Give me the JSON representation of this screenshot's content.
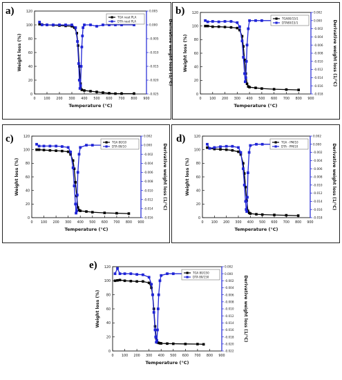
{
  "figure": {
    "palette": {
      "tga": "#000000",
      "dtg": "#1f24d6"
    }
  },
  "chart_data": [
    {
      "id": "a",
      "type": "line",
      "panel_label": "a)",
      "xlabel": "Temperature (°C)",
      "ylabel": "Weight loss (%)",
      "y2label": "Derivative weight loss (1/°C)",
      "xlim": [
        0,
        900
      ],
      "xticks": [
        0,
        100,
        200,
        300,
        400,
        500,
        600,
        700,
        800,
        900
      ],
      "ylim": [
        0,
        120
      ],
      "yticks": [
        0,
        20,
        40,
        60,
        80,
        100,
        120
      ],
      "y2lim": [
        -0.025,
        0.005
      ],
      "y2ticks": [
        0.005,
        0.0,
        -0.005,
        -0.01,
        -0.015,
        -0.02,
        -0.025
      ],
      "y2ticklabels": [
        "0.005",
        "0.000",
        "-0.005",
        "-0.010",
        "-0.015",
        "-0.020",
        "-0.025"
      ],
      "legend": {
        "position": "top-right",
        "entries": [
          "TGA neat PLA",
          "DTA neat PLA"
        ]
      },
      "series": [
        {
          "name": "TGA neat PLA",
          "axis": "left",
          "color": "#000000",
          "x": [
            40,
            60,
            100,
            150,
            200,
            250,
            300,
            320,
            340,
            350,
            360,
            370,
            380,
            400,
            450,
            500,
            550,
            600,
            650,
            700,
            800
          ],
          "y": [
            101,
            100.5,
            100,
            99.5,
            99,
            98.5,
            98,
            96,
            88,
            70,
            40,
            15,
            6,
            5,
            4,
            3,
            2,
            1,
            0.5,
            0.5,
            0.5
          ]
        },
        {
          "name": "DTA neat PLA",
          "axis": "right",
          "color": "#1f24d6",
          "x": [
            40,
            60,
            100,
            150,
            200,
            250,
            300,
            330,
            345,
            355,
            360,
            365,
            370,
            375,
            380,
            385,
            390,
            400,
            450,
            500,
            550,
            600,
            650,
            700,
            800
          ],
          "y": [
            0.001,
            0.0,
            0.0,
            0.0,
            0.0,
            0.0,
            0.0,
            -0.001,
            -0.006,
            -0.014,
            -0.02,
            -0.023,
            -0.022,
            -0.015,
            -0.008,
            -0.004,
            -0.001,
            0.0,
            0.0,
            -0.0005,
            0.0,
            0.0,
            0.0,
            0.0,
            0.0
          ]
        }
      ]
    },
    {
      "id": "b",
      "type": "line",
      "panel_label": "b)",
      "xlabel": "Temperature (°C)",
      "ylabel": "Weight loss (%)",
      "y2label": "Derivative weight loss (1/°C)",
      "xlim": [
        0,
        900
      ],
      "xticks": [
        0,
        100,
        200,
        300,
        400,
        500,
        600,
        700,
        800,
        900
      ],
      "ylim": [
        0,
        120
      ],
      "yticks": [
        0,
        20,
        40,
        60,
        80,
        100,
        120
      ],
      "y2lim": [
        -0.018,
        0.002
      ],
      "y2ticks": [
        0.002,
        0.0,
        -0.002,
        -0.004,
        -0.006,
        -0.008,
        -0.01,
        -0.012,
        -0.014,
        -0.016,
        -0.018
      ],
      "y2ticklabels": [
        "0.002",
        "0.000",
        "-0.002",
        "-0.004",
        "-0.006",
        "-0.008",
        "-0.010",
        "-0.012",
        "-0.014",
        "-0.016",
        "-0.018"
      ],
      "legend": {
        "position": "top-right",
        "entries": [
          "TGA80/15/1",
          "DTA80/15/1"
        ]
      },
      "series": [
        {
          "name": "TGA80/15/1",
          "axis": "left",
          "color": "#000000",
          "x": [
            40,
            60,
            100,
            150,
            200,
            250,
            300,
            320,
            340,
            350,
            360,
            370,
            380,
            390,
            400,
            450,
            500,
            600,
            700,
            800
          ],
          "y": [
            100,
            100,
            99,
            99,
            98.5,
            98,
            97,
            94,
            85,
            70,
            50,
            30,
            15,
            11,
            10,
            9,
            8,
            7,
            6.5,
            6
          ]
        },
        {
          "name": "DTA80/15/1",
          "axis": "right",
          "color": "#1f24d6",
          "x": [
            40,
            60,
            100,
            150,
            200,
            250,
            300,
            320,
            340,
            350,
            360,
            365,
            370,
            375,
            380,
            390,
            400,
            450,
            500,
            600,
            700,
            800
          ],
          "y": [
            0.0,
            -0.0003,
            -0.0002,
            -0.0003,
            -0.0002,
            -0.0002,
            -0.0005,
            -0.0015,
            -0.005,
            -0.009,
            -0.013,
            -0.015,
            -0.014,
            -0.01,
            -0.006,
            -0.002,
            0.0,
            0.0,
            0.0,
            0.0,
            0.0,
            0.0
          ]
        }
      ]
    },
    {
      "id": "c",
      "type": "line",
      "panel_label": "c)",
      "xlabel": "Temperature (°C)",
      "ylabel": "Weight loss (%)",
      "y2label": "Derivative weight loss (1/°C)",
      "xlim": [
        0,
        900
      ],
      "xticks": [
        0,
        100,
        200,
        300,
        400,
        500,
        600,
        700,
        800,
        900
      ],
      "ylim": [
        0,
        120
      ],
      "yticks": [
        0,
        20,
        40,
        60,
        80,
        100,
        120
      ],
      "y2lim": [
        -0.016,
        0.002
      ],
      "y2ticks": [
        0.002,
        0.0,
        -0.002,
        -0.004,
        -0.006,
        -0.008,
        -0.01,
        -0.012,
        -0.014,
        -0.016
      ],
      "y2ticklabels": [
        "0.002",
        "0.000",
        "-0.002",
        "-0.004",
        "-0.006",
        "-0.008",
        "-0.010",
        "-0.012",
        "-0.014",
        "-0.016"
      ],
      "legend": {
        "position": "top-right",
        "entries": [
          "TGA 80/10",
          "DTA 80/10"
        ]
      },
      "series": [
        {
          "name": "TGA 80/10",
          "axis": "left",
          "color": "#000000",
          "x": [
            40,
            60,
            100,
            150,
            200,
            250,
            300,
            320,
            340,
            350,
            360,
            370,
            380,
            390,
            400,
            450,
            500,
            600,
            700,
            800
          ],
          "y": [
            100,
            100,
            99.5,
            99,
            98.5,
            98,
            97,
            93,
            84,
            72,
            52,
            32,
            15,
            11,
            10,
            9,
            8,
            7,
            6.5,
            6
          ]
        },
        {
          "name": "DTA 80/10",
          "axis": "right",
          "color": "#1f24d6",
          "x": [
            40,
            60,
            100,
            150,
            200,
            250,
            300,
            320,
            340,
            350,
            360,
            365,
            370,
            375,
            380,
            390,
            400,
            450,
            500,
            600,
            700,
            800
          ],
          "y": [
            0.0002,
            -0.0002,
            -0.0002,
            -0.0002,
            -0.0002,
            -0.0003,
            -0.0005,
            -0.0015,
            -0.005,
            -0.009,
            -0.013,
            -0.015,
            -0.0145,
            -0.011,
            -0.006,
            -0.002,
            -0.0005,
            0.0,
            0.0,
            0.0,
            0.0,
            0.0
          ]
        }
      ]
    },
    {
      "id": "d",
      "type": "line",
      "panel_label": "d)",
      "xlabel": "Temperature (°C)",
      "ylabel": "Weight loss (%)",
      "y2label": "Derivative weight loss (1/°C)",
      "xlim": [
        0,
        900
      ],
      "xticks": [
        0,
        100,
        200,
        300,
        400,
        500,
        600,
        700,
        800,
        900
      ],
      "ylim": [
        0,
        120
      ],
      "yticks": [
        0,
        20,
        40,
        60,
        80,
        100,
        120
      ],
      "y2lim": [
        -0.018,
        0.002
      ],
      "y2ticks": [
        0.002,
        0.0,
        -0.002,
        -0.004,
        -0.006,
        -0.008,
        -0.01,
        -0.012,
        -0.014,
        -0.016,
        -0.018
      ],
      "y2ticklabels": [
        "0.002",
        "0.000",
        "-0.002",
        "-0.004",
        "-0.006",
        "-0.008",
        "-0.010",
        "-0.012",
        "-0.014",
        "-0.016",
        "-0.018"
      ],
      "legend": {
        "position": "top-right",
        "entries": [
          "TGA - PM/10",
          "DTA - PM/10"
        ]
      },
      "series": [
        {
          "name": "TGA - PM/10",
          "axis": "left",
          "color": "#000000",
          "x": [
            40,
            60,
            100,
            150,
            200,
            250,
            300,
            320,
            340,
            350,
            360,
            370,
            380,
            390,
            400,
            450,
            500,
            600,
            700,
            800
          ],
          "y": [
            103,
            102,
            101,
            100.5,
            100,
            99,
            97,
            93,
            80,
            65,
            45,
            25,
            10,
            7,
            6,
            5,
            4.5,
            4,
            3.5,
            3
          ]
        },
        {
          "name": "DTA - PM/10",
          "axis": "right",
          "color": "#1f24d6",
          "x": [
            40,
            60,
            100,
            150,
            200,
            250,
            300,
            320,
            340,
            350,
            360,
            365,
            370,
            375,
            380,
            390,
            400,
            450,
            500,
            600,
            700,
            800
          ],
          "y": [
            0.0,
            -0.001,
            -0.0008,
            -0.0006,
            -0.0005,
            -0.0005,
            -0.0008,
            -0.002,
            -0.006,
            -0.01,
            -0.014,
            -0.016,
            -0.0165,
            -0.013,
            -0.007,
            -0.002,
            -0.0003,
            0.0,
            0.0,
            0.0,
            0.0,
            0.0
          ]
        }
      ]
    },
    {
      "id": "e",
      "type": "line",
      "panel_label": "e)",
      "xlabel": "Temperature (°C)",
      "ylabel": "Weight loss (%)",
      "y2label": "Derivative weight loss (1/°C)",
      "xlim": [
        0,
        900
      ],
      "xticks": [
        0,
        100,
        200,
        300,
        400,
        500,
        600,
        700,
        800,
        900
      ],
      "ylim": [
        0,
        120
      ],
      "yticks": [
        0,
        20,
        40,
        60,
        80,
        100,
        120
      ],
      "y2lim": [
        -0.022,
        0.002
      ],
      "y2ticks": [
        0.002,
        0.0,
        -0.002,
        -0.004,
        -0.006,
        -0.008,
        -0.01,
        -0.012,
        -0.014,
        -0.016,
        -0.018,
        -0.02,
        -0.022
      ],
      "y2ticklabels": [
        "0.002",
        "0.000",
        "-0.002",
        "-0.004",
        "-0.006",
        "-0.008",
        "-0.010",
        "-0.012",
        "-0.014",
        "-0.016",
        "-0.018",
        "-0.020",
        "-0.022"
      ],
      "legend": {
        "position": "top-right",
        "entries": [
          "TGA 80/150",
          "DTA 80/150"
        ]
      },
      "series": [
        {
          "name": "TGA 80/150",
          "axis": "left",
          "color": "#000000",
          "x": [
            20,
            40,
            60,
            100,
            150,
            200,
            250,
            300,
            320,
            330,
            340,
            350,
            360,
            370,
            380,
            390,
            400,
            450,
            500,
            600,
            700,
            750
          ],
          "y": [
            100,
            100.5,
            101,
            100,
            99.5,
            99,
            99,
            97,
            90,
            80,
            60,
            35,
            18,
            12,
            11.5,
            11,
            10.8,
            10.5,
            10.3,
            10,
            9.8,
            9.5
          ]
        },
        {
          "name": "DTA 80/150",
          "axis": "right",
          "color": "#1f24d6",
          "x": [
            20,
            40,
            60,
            100,
            150,
            200,
            250,
            300,
            320,
            330,
            340,
            350,
            355,
            360,
            365,
            370,
            375,
            380,
            390,
            400,
            450,
            500,
            600,
            700,
            800
          ],
          "y": [
            0.0,
            0.0015,
            0.0,
            0.0,
            0.0,
            -0.0002,
            -0.0003,
            -0.001,
            -0.003,
            -0.006,
            -0.011,
            -0.016,
            -0.018,
            -0.0195,
            -0.019,
            -0.016,
            -0.01,
            -0.006,
            -0.002,
            -0.0005,
            0.0,
            0.0,
            0.0,
            0.0,
            0.0
          ]
        }
      ]
    }
  ]
}
